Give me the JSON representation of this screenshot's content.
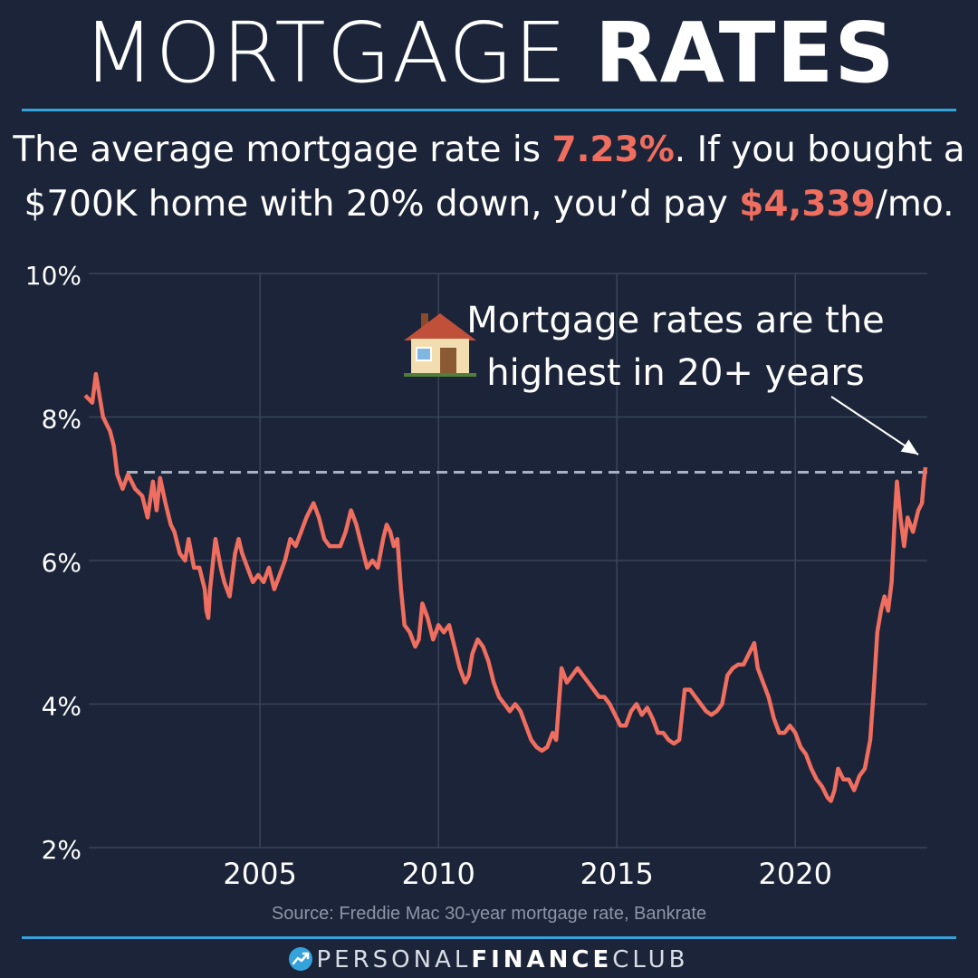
{
  "title": {
    "light": "MORTGAGE",
    "bold": "RATES"
  },
  "headline": {
    "l1_a": "The average mortgage rate is ",
    "l1_rate": "7.23%",
    "l1_b": ". If you bought a",
    "l2_a": "$700K home with 20% down, you’d pay ",
    "l2_payment": "$4,339",
    "l2_b": "/mo."
  },
  "source": "Source: Freddie Mac 30-year mortgage rate, Bankrate",
  "brand": {
    "light": "PERSONAL",
    "bold": "FINANCE",
    "light2": "CLUB"
  },
  "colors": {
    "background": "#1b2438",
    "line": "#f06e5f",
    "accent": "#35a3db",
    "grid": "#3b4458",
    "reference": "#a9b0bf"
  },
  "chart_data": {
    "type": "line",
    "title": "",
    "xlabel": "",
    "ylabel": "",
    "ylim": [
      2,
      10
    ],
    "xlim": [
      2000.2,
      2023.7
    ],
    "yticks": [
      2,
      4,
      6,
      8,
      10
    ],
    "ytick_labels": [
      "2%",
      "4%",
      "6%",
      "8%",
      "10%"
    ],
    "xticks": [
      2005,
      2010,
      2015,
      2020
    ],
    "xtick_labels": [
      "2005",
      "2010",
      "2015",
      "2020"
    ],
    "grid": true,
    "reference_line": {
      "value": 7.23,
      "style": "dashed"
    },
    "annotation": {
      "icon": "house-icon",
      "line1": "Mortgage rates are the",
      "line2": "highest in 20+ years",
      "points_to": {
        "x": 2023.65,
        "y": 7.35
      }
    },
    "series": [
      {
        "points": [
          [
            2000.1,
            8.3
          ],
          [
            2000.3,
            8.2
          ],
          [
            2000.4,
            8.6
          ],
          [
            2000.6,
            8.0
          ],
          [
            2000.8,
            7.8
          ],
          [
            2000.9,
            7.6
          ],
          [
            2001.0,
            7.2
          ],
          [
            2001.15,
            7.0
          ],
          [
            2001.3,
            7.2
          ],
          [
            2001.5,
            7.0
          ],
          [
            2001.7,
            6.9
          ],
          [
            2001.85,
            6.6
          ],
          [
            2002.0,
            7.1
          ],
          [
            2002.1,
            6.7
          ],
          [
            2002.2,
            7.15
          ],
          [
            2002.35,
            6.8
          ],
          [
            2002.5,
            6.5
          ],
          [
            2002.6,
            6.4
          ],
          [
            2002.75,
            6.1
          ],
          [
            2002.9,
            6.0
          ],
          [
            2003.0,
            6.3
          ],
          [
            2003.15,
            5.9
          ],
          [
            2003.3,
            5.9
          ],
          [
            2003.45,
            5.6
          ],
          [
            2003.5,
            5.3
          ],
          [
            2003.55,
            5.2
          ],
          [
            2003.6,
            5.6
          ],
          [
            2003.75,
            6.3
          ],
          [
            2003.9,
            5.9
          ],
          [
            2004.0,
            5.7
          ],
          [
            2004.15,
            5.5
          ],
          [
            2004.3,
            6.1
          ],
          [
            2004.4,
            6.3
          ],
          [
            2004.5,
            6.1
          ],
          [
            2004.65,
            5.9
          ],
          [
            2004.8,
            5.7
          ],
          [
            2004.95,
            5.8
          ],
          [
            2005.1,
            5.7
          ],
          [
            2005.25,
            5.9
          ],
          [
            2005.4,
            5.6
          ],
          [
            2005.55,
            5.8
          ],
          [
            2005.7,
            6.0
          ],
          [
            2005.85,
            6.3
          ],
          [
            2006.0,
            6.2
          ],
          [
            2006.15,
            6.4
          ],
          [
            2006.3,
            6.6
          ],
          [
            2006.5,
            6.8
          ],
          [
            2006.65,
            6.6
          ],
          [
            2006.8,
            6.3
          ],
          [
            2006.95,
            6.2
          ],
          [
            2007.1,
            6.2
          ],
          [
            2007.25,
            6.2
          ],
          [
            2007.4,
            6.4
          ],
          [
            2007.55,
            6.7
          ],
          [
            2007.7,
            6.5
          ],
          [
            2007.85,
            6.2
          ],
          [
            2008.0,
            5.9
          ],
          [
            2008.15,
            6.0
          ],
          [
            2008.3,
            5.9
          ],
          [
            2008.45,
            6.3
          ],
          [
            2008.55,
            6.5
          ],
          [
            2008.65,
            6.4
          ],
          [
            2008.75,
            6.2
          ],
          [
            2008.85,
            6.3
          ],
          [
            2008.95,
            5.6
          ],
          [
            2009.05,
            5.1
          ],
          [
            2009.2,
            5.0
          ],
          [
            2009.35,
            4.8
          ],
          [
            2009.45,
            4.9
          ],
          [
            2009.55,
            5.4
          ],
          [
            2009.7,
            5.2
          ],
          [
            2009.85,
            4.9
          ],
          [
            2010.0,
            5.1
          ],
          [
            2010.15,
            5.0
          ],
          [
            2010.3,
            5.1
          ],
          [
            2010.45,
            4.8
          ],
          [
            2010.6,
            4.5
          ],
          [
            2010.75,
            4.3
          ],
          [
            2010.85,
            4.4
          ],
          [
            2010.95,
            4.7
          ],
          [
            2011.1,
            4.9
          ],
          [
            2011.25,
            4.8
          ],
          [
            2011.4,
            4.6
          ],
          [
            2011.55,
            4.3
          ],
          [
            2011.7,
            4.1
          ],
          [
            2011.85,
            4.0
          ],
          [
            2012.0,
            3.9
          ],
          [
            2012.15,
            4.0
          ],
          [
            2012.3,
            3.9
          ],
          [
            2012.45,
            3.7
          ],
          [
            2012.6,
            3.5
          ],
          [
            2012.75,
            3.4
          ],
          [
            2012.9,
            3.35
          ],
          [
            2013.05,
            3.4
          ],
          [
            2013.2,
            3.6
          ],
          [
            2013.3,
            3.5
          ],
          [
            2013.45,
            4.5
          ],
          [
            2013.6,
            4.3
          ],
          [
            2013.75,
            4.4
          ],
          [
            2013.9,
            4.5
          ],
          [
            2014.05,
            4.4
          ],
          [
            2014.2,
            4.3
          ],
          [
            2014.35,
            4.2
          ],
          [
            2014.5,
            4.1
          ],
          [
            2014.65,
            4.1
          ],
          [
            2014.8,
            4.0
          ],
          [
            2014.95,
            3.85
          ],
          [
            2015.1,
            3.7
          ],
          [
            2015.25,
            3.7
          ],
          [
            2015.4,
            3.9
          ],
          [
            2015.55,
            4.0
          ],
          [
            2015.7,
            3.85
          ],
          [
            2015.85,
            3.95
          ],
          [
            2016.0,
            3.8
          ],
          [
            2016.15,
            3.6
          ],
          [
            2016.3,
            3.6
          ],
          [
            2016.45,
            3.5
          ],
          [
            2016.6,
            3.45
          ],
          [
            2016.75,
            3.5
          ],
          [
            2016.9,
            4.2
          ],
          [
            2017.05,
            4.2
          ],
          [
            2017.2,
            4.1
          ],
          [
            2017.35,
            4.0
          ],
          [
            2017.5,
            3.9
          ],
          [
            2017.65,
            3.85
          ],
          [
            2017.8,
            3.9
          ],
          [
            2017.95,
            4.0
          ],
          [
            2018.1,
            4.4
          ],
          [
            2018.25,
            4.5
          ],
          [
            2018.4,
            4.55
          ],
          [
            2018.55,
            4.55
          ],
          [
            2018.7,
            4.7
          ],
          [
            2018.85,
            4.85
          ],
          [
            2018.95,
            4.5
          ],
          [
            2019.1,
            4.3
          ],
          [
            2019.25,
            4.1
          ],
          [
            2019.4,
            3.8
          ],
          [
            2019.55,
            3.6
          ],
          [
            2019.7,
            3.6
          ],
          [
            2019.85,
            3.7
          ],
          [
            2020.0,
            3.6
          ],
          [
            2020.15,
            3.4
          ],
          [
            2020.3,
            3.3
          ],
          [
            2020.45,
            3.1
          ],
          [
            2020.6,
            2.95
          ],
          [
            2020.75,
            2.85
          ],
          [
            2020.9,
            2.7
          ],
          [
            2021.0,
            2.65
          ],
          [
            2021.1,
            2.8
          ],
          [
            2021.2,
            3.1
          ],
          [
            2021.35,
            2.95
          ],
          [
            2021.5,
            2.95
          ],
          [
            2021.65,
            2.8
          ],
          [
            2021.8,
            3.0
          ],
          [
            2021.95,
            3.1
          ],
          [
            2022.1,
            3.5
          ],
          [
            2022.2,
            4.2
          ],
          [
            2022.3,
            5.0
          ],
          [
            2022.4,
            5.3
          ],
          [
            2022.5,
            5.5
          ],
          [
            2022.6,
            5.3
          ],
          [
            2022.7,
            5.7
          ],
          [
            2022.8,
            6.7
          ],
          [
            2022.85,
            7.1
          ],
          [
            2022.95,
            6.6
          ],
          [
            2023.05,
            6.2
          ],
          [
            2023.15,
            6.6
          ],
          [
            2023.3,
            6.4
          ],
          [
            2023.45,
            6.7
          ],
          [
            2023.55,
            6.8
          ],
          [
            2023.6,
            7.1
          ],
          [
            2023.65,
            7.3
          ]
        ]
      }
    ]
  }
}
